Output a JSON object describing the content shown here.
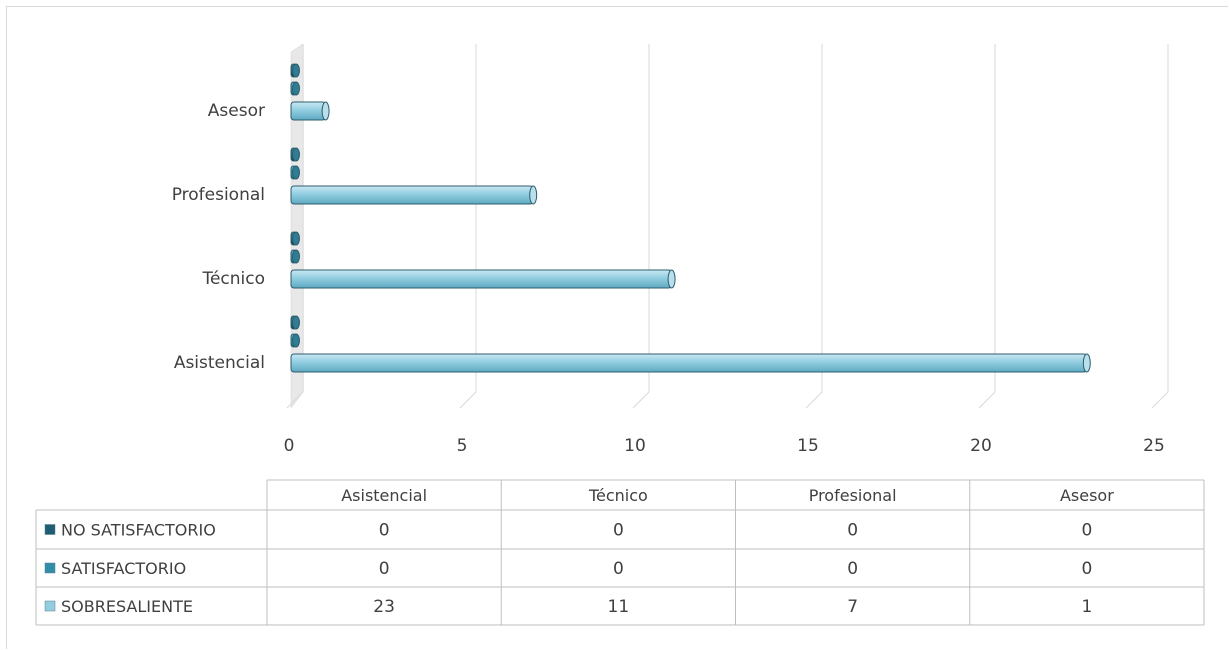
{
  "chart_data": {
    "type": "bar",
    "orientation": "horizontal",
    "style": "3d",
    "title": "",
    "categories": [
      "Asistencial",
      "Técnico",
      "Profesional",
      "Asesor"
    ],
    "xlim": [
      0,
      25
    ],
    "x_ticks": [
      "0",
      "5",
      "10",
      "15",
      "20",
      "25"
    ],
    "grid": true,
    "legend": "data-table",
    "series": [
      {
        "name": "NO SATISFACTORIO",
        "color": "#1f5d73",
        "values": [
          0,
          0,
          0,
          0
        ]
      },
      {
        "name": "SATISFACTORIO",
        "color": "#2f8fab",
        "values": [
          0,
          0,
          0,
          0
        ]
      },
      {
        "name": "SOBRESALIENTE",
        "color": "#92cde0",
        "values": [
          23,
          11,
          7,
          1
        ]
      }
    ]
  }
}
